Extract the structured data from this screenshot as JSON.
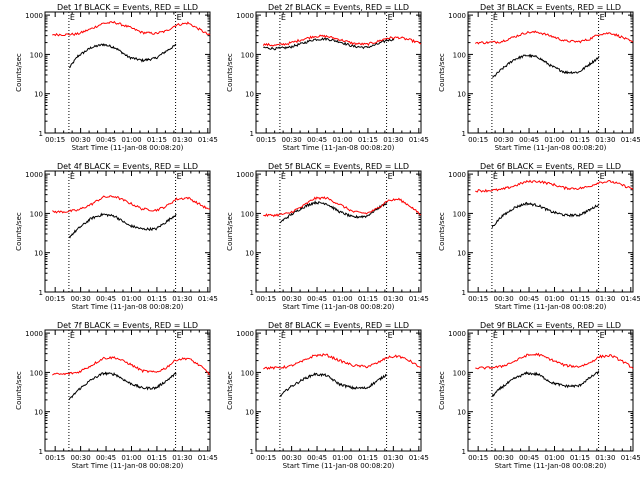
{
  "figure": {
    "shared": {
      "xlabel": "Start Time (11-Jan-08 00:08:20)",
      "ylabel": "Counts/sec",
      "x_tick_labels": [
        "00:15",
        "00:30",
        "00:45",
        "01:00",
        "01:15",
        "01:30",
        "01:45"
      ],
      "y_tick_labels": [
        "1",
        "10",
        "100",
        "1000"
      ],
      "marker_labels": [
        "E",
        "E"
      ],
      "colors": {
        "events": "#000000",
        "lld": "#ff0000",
        "axes": "#000000",
        "background": "#ffffff"
      }
    }
  },
  "chart_data": [
    {
      "type": "line",
      "title": "Det 1f BLACK = Events, RED = LLD",
      "x_unit": "minutes after 00:08:20",
      "xlim": [
        6.7,
        98
      ],
      "ylim": [
        1,
        1200
      ],
      "y_scale": "log",
      "markers": [
        {
          "label": "E",
          "x": 14.8
        },
        {
          "label": "E",
          "x": 77.7
        }
      ],
      "series": [
        {
          "name": "Events",
          "color": "black",
          "x": [
            15,
            20,
            28,
            35,
            42,
            50,
            58,
            66,
            72,
            78
          ],
          "y": [
            45,
            90,
            150,
            180,
            150,
            85,
            70,
            80,
            120,
            175
          ]
        },
        {
          "name": "LLD",
          "color": "red",
          "x": [
            5,
            12,
            20,
            28,
            35,
            42,
            50,
            58,
            66,
            72,
            78,
            85,
            92,
            98
          ],
          "y": [
            320,
            320,
            330,
            450,
            620,
            650,
            500,
            360,
            340,
            390,
            560,
            630,
            430,
            300
          ]
        }
      ]
    },
    {
      "type": "line",
      "title": "Det 2f BLACK = Events, RED = LLD",
      "x_unit": "minutes after 00:08:20",
      "xlim": [
        6.7,
        98
      ],
      "ylim": [
        1,
        1200
      ],
      "y_scale": "log",
      "markers": [
        {
          "label": "E",
          "x": 14.8
        },
        {
          "label": "E",
          "x": 77.7
        }
      ],
      "series": [
        {
          "name": "Events",
          "color": "black",
          "x": [
            5,
            12,
            20,
            28,
            35,
            42,
            50,
            58,
            66,
            72,
            78,
            82
          ],
          "y": [
            150,
            140,
            150,
            190,
            240,
            250,
            210,
            160,
            150,
            180,
            230,
            240
          ]
        },
        {
          "name": "LLD",
          "color": "red",
          "x": [
            5,
            12,
            20,
            28,
            35,
            42,
            50,
            58,
            66,
            72,
            78,
            85,
            92,
            98
          ],
          "y": [
            180,
            170,
            190,
            240,
            290,
            290,
            240,
            190,
            180,
            210,
            260,
            270,
            230,
            190
          ]
        }
      ]
    },
    {
      "type": "line",
      "title": "Det 3f BLACK = Events, RED = LLD",
      "x_unit": "minutes after 00:08:20",
      "xlim": [
        6.7,
        98
      ],
      "ylim": [
        1,
        1200
      ],
      "y_scale": "log",
      "markers": [
        {
          "label": "E",
          "x": 14.8
        },
        {
          "label": "E",
          "x": 77.7
        }
      ],
      "series": [
        {
          "name": "Events",
          "color": "black",
          "x": [
            15,
            20,
            28,
            35,
            42,
            50,
            58,
            66,
            72,
            78
          ],
          "y": [
            25,
            40,
            75,
            95,
            85,
            50,
            35,
            35,
            55,
            85
          ]
        },
        {
          "name": "LLD",
          "color": "red",
          "x": [
            5,
            12,
            20,
            28,
            35,
            42,
            50,
            58,
            66,
            72,
            78,
            85,
            92,
            98
          ],
          "y": [
            200,
            200,
            210,
            280,
            360,
            370,
            290,
            220,
            210,
            240,
            330,
            350,
            270,
            200
          ]
        }
      ]
    },
    {
      "type": "line",
      "title": "Det 4f BLACK = Events, RED = LLD",
      "x_unit": "minutes after 00:08:20",
      "xlim": [
        6.7,
        98
      ],
      "ylim": [
        1,
        1200
      ],
      "y_scale": "log",
      "markers": [
        {
          "label": "E",
          "x": 14.8
        },
        {
          "label": "E",
          "x": 77.7
        }
      ],
      "series": [
        {
          "name": "Events",
          "color": "black",
          "x": [
            15,
            20,
            28,
            35,
            42,
            50,
            58,
            66,
            72,
            78
          ],
          "y": [
            25,
            40,
            75,
            95,
            85,
            50,
            40,
            40,
            60,
            95
          ]
        },
        {
          "name": "LLD",
          "color": "red",
          "x": [
            5,
            12,
            20,
            28,
            35,
            42,
            50,
            58,
            66,
            72,
            78,
            85,
            92,
            98
          ],
          "y": [
            110,
            110,
            120,
            170,
            260,
            270,
            190,
            130,
            120,
            150,
            230,
            250,
            170,
            120
          ]
        }
      ]
    },
    {
      "type": "line",
      "title": "Det 5f BLACK = Events, RED = LLD",
      "x_unit": "minutes after 00:08:20",
      "xlim": [
        6.7,
        98
      ],
      "ylim": [
        1,
        1200
      ],
      "y_scale": "log",
      "markers": [
        {
          "label": "E",
          "x": 14.8
        },
        {
          "label": "E",
          "x": 77.7
        }
      ],
      "series": [
        {
          "name": "Events",
          "color": "black",
          "x": [
            15,
            20,
            28,
            35,
            42,
            50,
            58,
            66,
            72,
            78
          ],
          "y": [
            60,
            85,
            140,
            190,
            180,
            110,
            80,
            85,
            130,
            190
          ]
        },
        {
          "name": "LLD",
          "color": "red",
          "x": [
            5,
            12,
            20,
            28,
            35,
            42,
            50,
            58,
            66,
            72,
            78,
            85,
            92,
            98
          ],
          "y": [
            90,
            90,
            100,
            150,
            240,
            250,
            170,
            110,
            100,
            130,
            210,
            230,
            150,
            90
          ]
        }
      ]
    },
    {
      "type": "line",
      "title": "Det 6f BLACK = Events, RED = LLD",
      "x_unit": "minutes after 00:08:20",
      "xlim": [
        6.7,
        98
      ],
      "ylim": [
        1,
        1200
      ],
      "y_scale": "log",
      "markers": [
        {
          "label": "E",
          "x": 14.8
        },
        {
          "label": "E",
          "x": 77.7
        }
      ],
      "series": [
        {
          "name": "Events",
          "color": "black",
          "x": [
            15,
            20,
            28,
            35,
            42,
            50,
            58,
            66,
            72,
            78
          ],
          "y": [
            45,
            80,
            140,
            180,
            160,
            110,
            90,
            90,
            120,
            170
          ]
        },
        {
          "name": "LLD",
          "color": "red",
          "x": [
            5,
            12,
            20,
            28,
            35,
            42,
            50,
            58,
            66,
            72,
            78,
            85,
            92,
            98
          ],
          "y": [
            380,
            380,
            400,
            500,
            640,
            660,
            560,
            440,
            430,
            480,
            620,
            650,
            520,
            420
          ]
        }
      ]
    },
    {
      "type": "line",
      "title": "Det 7f BLACK = Events, RED = LLD",
      "x_unit": "minutes after 00:08:20",
      "xlim": [
        6.7,
        98
      ],
      "ylim": [
        1,
        1200
      ],
      "y_scale": "log",
      "markers": [
        {
          "label": "E",
          "x": 14.8
        },
        {
          "label": "E",
          "x": 77.7
        }
      ],
      "series": [
        {
          "name": "Events",
          "color": "black",
          "x": [
            15,
            20,
            28,
            35,
            42,
            50,
            58,
            66,
            72,
            78
          ],
          "y": [
            20,
            35,
            65,
            95,
            90,
            55,
            40,
            40,
            60,
            95
          ]
        },
        {
          "name": "LLD",
          "color": "red",
          "x": [
            5,
            12,
            20,
            28,
            35,
            42,
            50,
            58,
            66,
            72,
            78,
            85,
            92,
            98
          ],
          "y": [
            90,
            90,
            100,
            150,
            230,
            240,
            170,
            110,
            100,
            130,
            210,
            230,
            150,
            90
          ]
        }
      ]
    },
    {
      "type": "line",
      "title": "Det 8f BLACK = Events, RED = LLD",
      "x_unit": "minutes after 00:08:20",
      "xlim": [
        6.7,
        98
      ],
      "ylim": [
        1,
        1200
      ],
      "y_scale": "log",
      "markers": [
        {
          "label": "E",
          "x": 14.8
        },
        {
          "label": "E",
          "x": 77.7
        }
      ],
      "series": [
        {
          "name": "Events",
          "color": "black",
          "x": [
            15,
            20,
            28,
            35,
            42,
            50,
            58,
            66,
            72,
            78
          ],
          "y": [
            25,
            40,
            65,
            90,
            85,
            50,
            40,
            40,
            60,
            90
          ]
        },
        {
          "name": "LLD",
          "color": "red",
          "x": [
            5,
            12,
            20,
            28,
            35,
            42,
            50,
            58,
            66,
            72,
            78,
            85,
            92,
            98
          ],
          "y": [
            130,
            130,
            140,
            190,
            270,
            280,
            200,
            150,
            140,
            170,
            240,
            260,
            190,
            130
          ]
        }
      ]
    },
    {
      "type": "line",
      "title": "Det 9f BLACK = Events, RED = LLD",
      "x_unit": "minutes after 00:08:20",
      "xlim": [
        6.7,
        98
      ],
      "ylim": [
        1,
        1200
      ],
      "y_scale": "log",
      "markers": [
        {
          "label": "E",
          "x": 14.8
        },
        {
          "label": "E",
          "x": 77.7
        }
      ],
      "series": [
        {
          "name": "Events",
          "color": "black",
          "x": [
            15,
            20,
            28,
            35,
            42,
            50,
            58,
            66,
            72,
            78
          ],
          "y": [
            25,
            40,
            70,
            95,
            90,
            55,
            45,
            45,
            70,
            105
          ]
        },
        {
          "name": "LLD",
          "color": "red",
          "x": [
            5,
            12,
            20,
            28,
            35,
            42,
            50,
            58,
            66,
            72,
            78,
            85,
            92,
            98
          ],
          "y": [
            130,
            130,
            140,
            190,
            270,
            290,
            210,
            150,
            140,
            170,
            250,
            270,
            190,
            130
          ]
        }
      ]
    }
  ]
}
